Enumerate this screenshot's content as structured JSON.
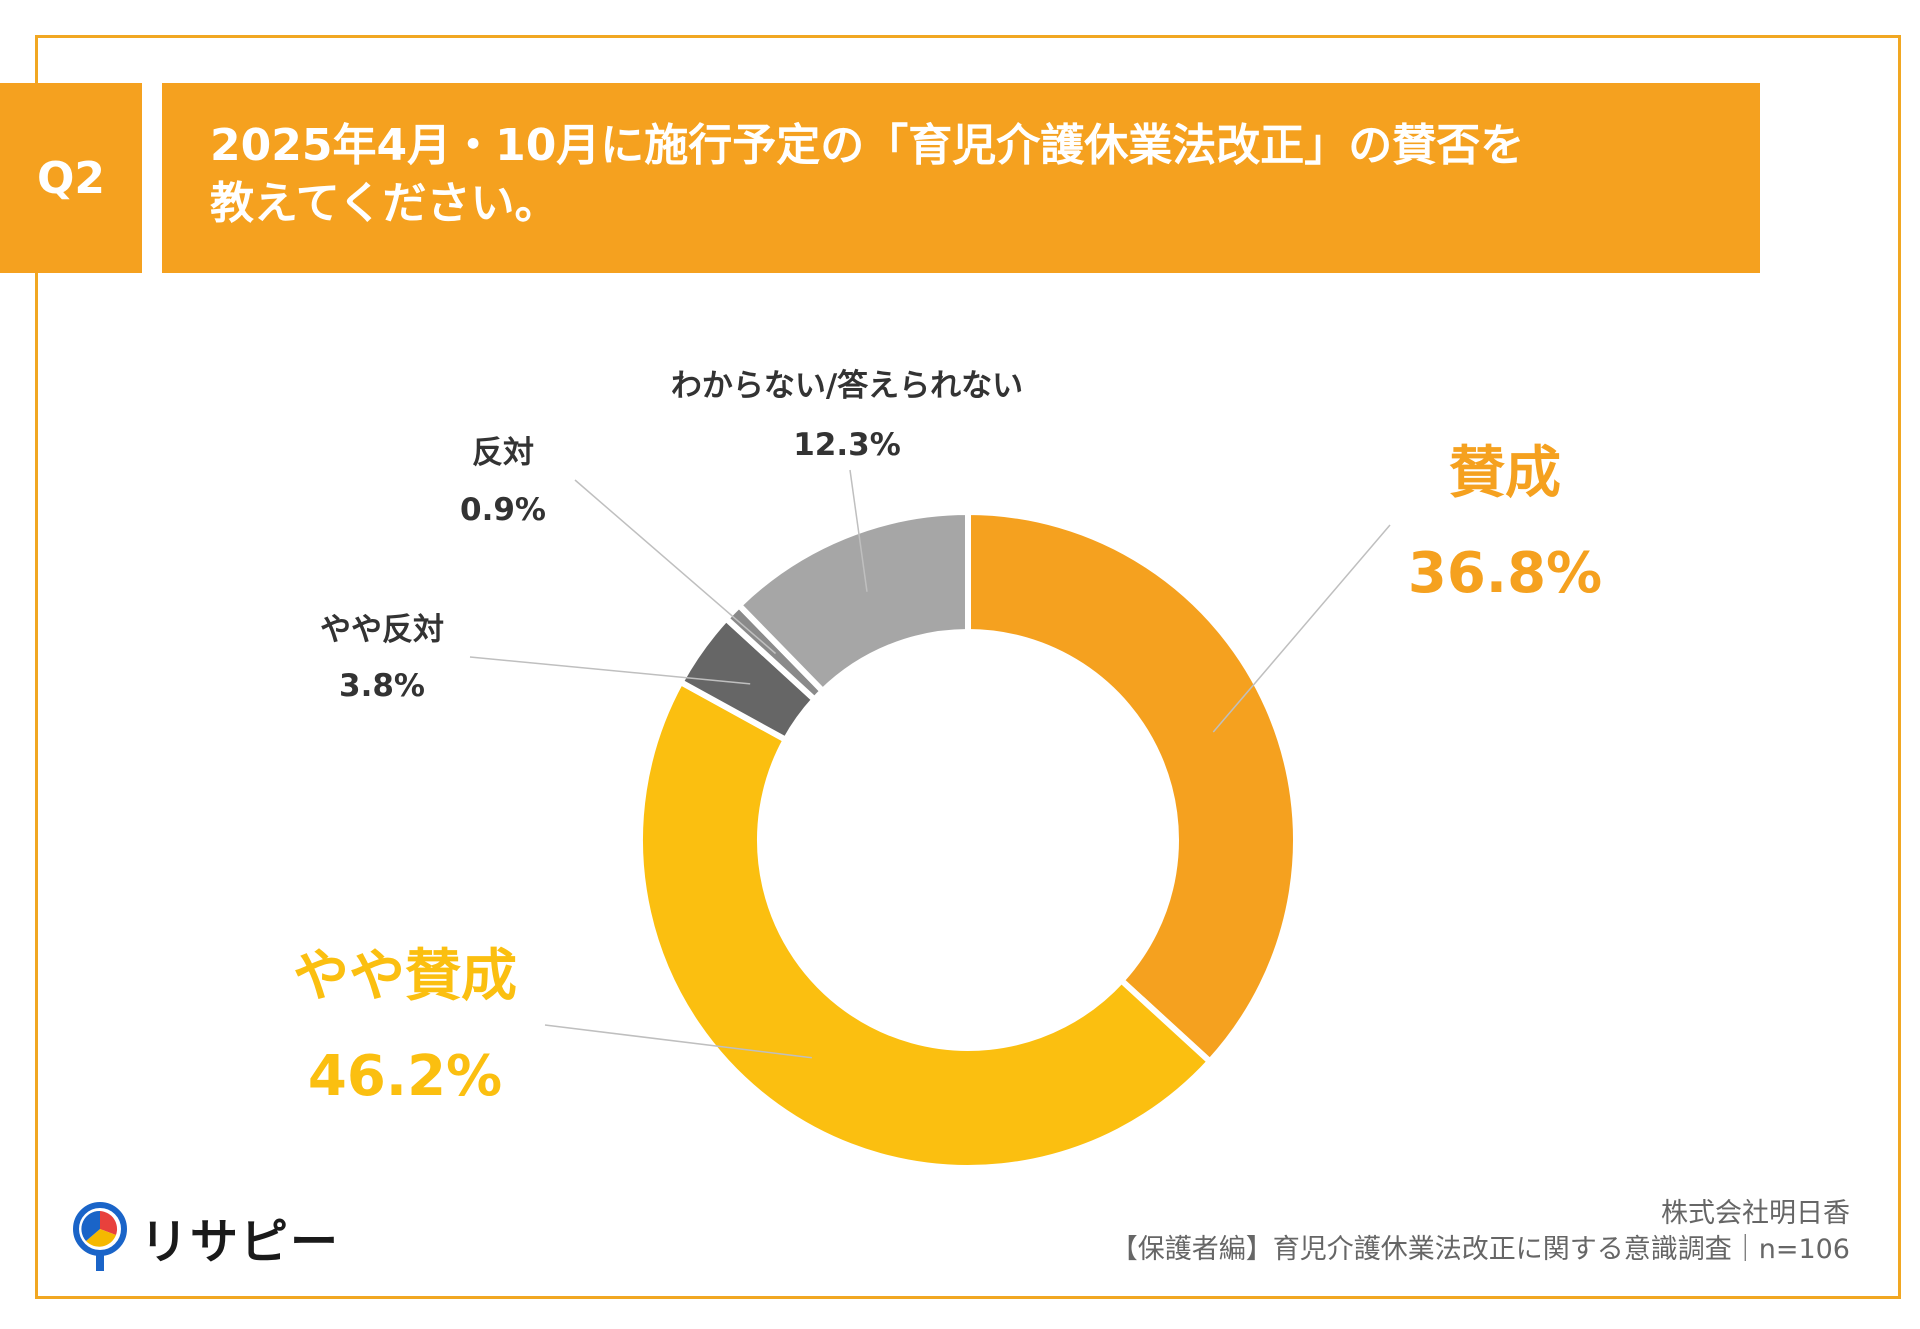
{
  "header": {
    "question_no": "Q2",
    "title_line1": "2025年4月・10月に施行予定の「育児介護休業法改正」の賛否を",
    "title_line2": "教えてください。"
  },
  "chart_data": {
    "type": "pie",
    "variant": "donut",
    "series": [
      {
        "label": "賛成",
        "value": 36.8,
        "value_label": "36.8%",
        "color": "#F5A11F"
      },
      {
        "label": "やや賛成",
        "value": 46.2,
        "value_label": "46.2%",
        "color": "#FBBF10"
      },
      {
        "label": "やや反対",
        "value": 3.8,
        "value_label": "3.8%",
        "color": "#666666"
      },
      {
        "label": "反対",
        "value": 0.9,
        "value_label": "0.9%",
        "color": "#8a8a8a"
      },
      {
        "label": "わからない/答えられない",
        "value": 12.3,
        "value_label": "12.3%",
        "color": "#A6A6A6"
      }
    ]
  },
  "brand": {
    "name": "リサピー"
  },
  "footer": {
    "company": "株式会社明日香",
    "survey": "【保護者編】育児介護休業法改正に関する意識調査｜n=106"
  }
}
